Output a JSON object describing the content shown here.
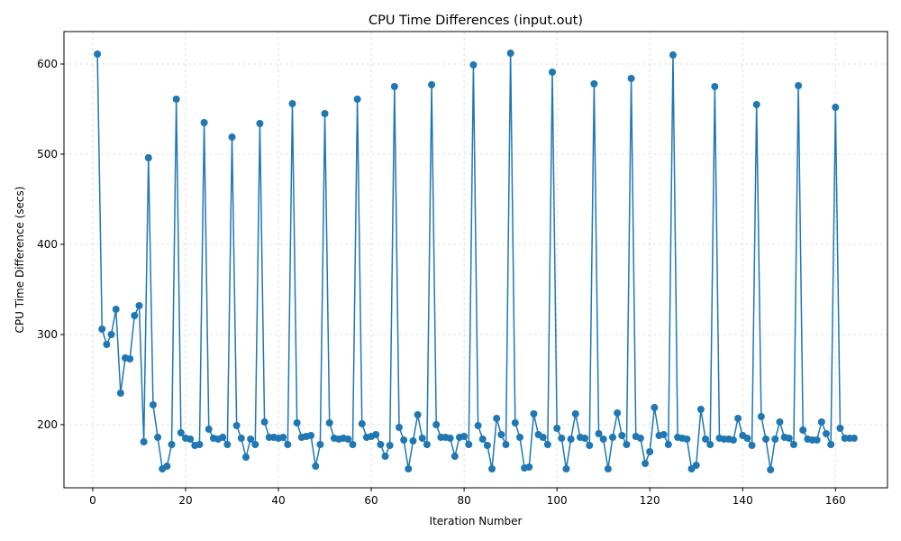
{
  "chart_data": {
    "type": "line",
    "title": "CPU Time Differences (input.out)",
    "xlabel": "Iteration Number",
    "ylabel": "CPU Time Difference (secs)",
    "xlim": [
      -6.2,
      171.2
    ],
    "ylim": [
      130,
      636
    ],
    "xticks": [
      0,
      20,
      40,
      60,
      80,
      100,
      120,
      140,
      160
    ],
    "yticks": [
      200,
      300,
      400,
      500,
      600
    ],
    "grid": true,
    "legend": "none",
    "marker": "circle",
    "series_color": "#1f77b4",
    "series": [
      {
        "x": [
          1,
          2,
          3,
          4,
          5,
          6,
          7,
          8,
          9,
          10,
          11,
          12,
          13,
          14,
          15,
          16,
          17,
          18,
          19,
          20,
          21,
          22,
          23,
          24,
          25,
          26,
          27,
          28,
          29,
          30,
          31,
          32,
          33,
          34,
          35,
          36,
          37,
          38,
          39,
          40,
          41,
          42,
          43,
          44,
          45,
          46,
          47,
          48,
          49,
          50,
          51,
          52,
          53,
          54,
          55,
          56,
          57,
          58,
          59,
          60,
          61,
          62,
          63,
          64,
          65,
          66,
          67,
          68,
          69,
          70,
          71,
          72,
          73,
          74,
          75,
          76,
          77,
          78,
          79,
          80,
          81,
          82,
          83,
          84,
          85,
          86,
          87,
          88,
          89,
          90,
          91,
          92,
          93,
          94,
          95,
          96,
          97,
          98,
          99,
          100,
          101,
          102,
          103,
          104,
          105,
          106,
          107,
          108,
          109,
          110,
          111,
          112,
          113,
          114,
          115,
          116,
          117,
          118,
          119,
          120,
          121,
          122,
          123,
          124,
          125,
          126,
          127,
          128,
          129,
          130,
          131,
          132,
          133,
          134,
          135,
          136,
          137,
          138,
          139,
          140,
          141,
          142,
          143,
          144,
          145,
          146,
          147,
          148,
          149,
          150,
          151,
          152,
          153,
          154,
          155,
          156,
          157,
          158,
          159,
          160,
          161,
          162,
          163,
          164
        ],
        "y": [
          611,
          306,
          289,
          300,
          328,
          235,
          274,
          273,
          321,
          332,
          181,
          496,
          222,
          186,
          151,
          154,
          178,
          561,
          191,
          185,
          184,
          177,
          178,
          535,
          195,
          185,
          184,
          186,
          178,
          519,
          199,
          185,
          164,
          184,
          178,
          534,
          203,
          186,
          186,
          185,
          186,
          178,
          556,
          202,
          186,
          187,
          188,
          154,
          178,
          545,
          202,
          185,
          184,
          185,
          184,
          178,
          561,
          201,
          186,
          187,
          189,
          178,
          165,
          177,
          575,
          197,
          183,
          151,
          182,
          211,
          185,
          178,
          577,
          200,
          186,
          186,
          185,
          165,
          186,
          187,
          178,
          599,
          199,
          184,
          177,
          151,
          207,
          189,
          178,
          612,
          202,
          186,
          152,
          153,
          212,
          189,
          186,
          178,
          591,
          196,
          185,
          151,
          184,
          212,
          186,
          185,
          177,
          578,
          190,
          184,
          151,
          186,
          213,
          188,
          178,
          584,
          187,
          185,
          157,
          170,
          219,
          188,
          189,
          178,
          610,
          186,
          185,
          184,
          151,
          155,
          217,
          184,
          178,
          575,
          185,
          184,
          184,
          183,
          207,
          188,
          185,
          177,
          555,
          209,
          184,
          150,
          184,
          203,
          186,
          185,
          178,
          576,
          194,
          184,
          183,
          183,
          203,
          190,
          178,
          552,
          196,
          185,
          185,
          185
        ]
      }
    ]
  }
}
